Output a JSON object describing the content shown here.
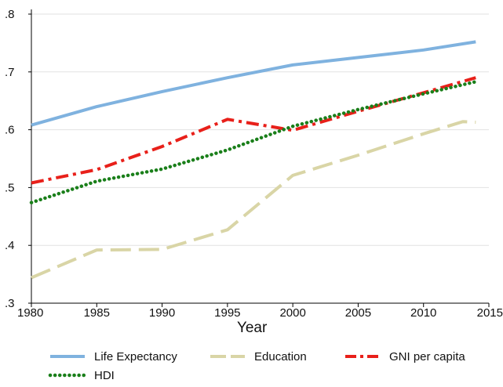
{
  "chart_data": {
    "type": "line",
    "title": "",
    "xlabel": "Year",
    "ylabel": "",
    "xlim": [
      1980,
      2015
    ],
    "ylim": [
      0.3,
      0.8
    ],
    "xticks": [
      1980,
      1985,
      1990,
      1995,
      2000,
      2005,
      2010,
      2015
    ],
    "xtick_labels": [
      "1980",
      "1985",
      "1990",
      "1995",
      "2000",
      "2005",
      "2010",
      "2015"
    ],
    "yticks": [
      0.3,
      0.4,
      0.5,
      0.6,
      0.7,
      0.8
    ],
    "ytick_labels": [
      ".3",
      ".4",
      ".5",
      ".6",
      ".7",
      ".8"
    ],
    "grid": true,
    "legend_position": "bottom",
    "series": [
      {
        "name": "Life Expectancy",
        "color": "#7fb2df",
        "style": "solid",
        "x": [
          1980,
          1985,
          1990,
          1995,
          2000,
          2005,
          2010,
          2014
        ],
        "y": [
          0.608,
          0.64,
          0.666,
          0.69,
          0.712,
          0.725,
          0.738,
          0.752
        ]
      },
      {
        "name": "Education",
        "color": "#d9d5a6",
        "style": "longdash",
        "x": [
          1980,
          1985,
          1990,
          1995,
          2000,
          2005,
          2010,
          2013,
          2014
        ],
        "y": [
          0.344,
          0.392,
          0.393,
          0.427,
          0.521,
          0.556,
          0.593,
          0.614,
          0.613
        ]
      },
      {
        "name": "GNI per capita",
        "color": "#e8201a",
        "style": "dashdot",
        "x": [
          1980,
          1985,
          1990,
          1995,
          2000,
          2005,
          2010,
          2014
        ],
        "y": [
          0.508,
          0.531,
          0.571,
          0.618,
          0.599,
          0.632,
          0.664,
          0.69
        ]
      },
      {
        "name": "HDI",
        "color": "#1a7f1a",
        "style": "dotdash",
        "x": [
          1980,
          1985,
          1990,
          1995,
          2000,
          2005,
          2010,
          2014
        ],
        "y": [
          0.474,
          0.511,
          0.532,
          0.565,
          0.606,
          0.635,
          0.662,
          0.683
        ]
      }
    ]
  }
}
